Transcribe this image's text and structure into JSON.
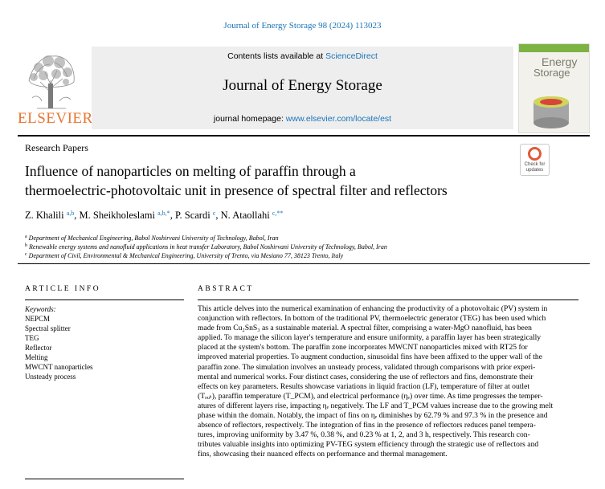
{
  "citation": "Journal of Energy Storage 98 (2024) 113023",
  "header": {
    "logo_text": "ELSEVIER",
    "contents_prefix": "Contents lists available at ",
    "contents_link": "ScienceDirect",
    "journal_title": "Journal of Energy Storage",
    "homepage_prefix": "journal homepage: ",
    "homepage_link": "www.elsevier.com/locate/est",
    "cover_line1": "Energy",
    "cover_line2": "Storage"
  },
  "section_label": "Research Papers",
  "check_updates": {
    "line1": "Check for",
    "line2": "updates"
  },
  "title_line1": "Influence of nanoparticles on melting of paraffin through a",
  "title_line2": "thermoelectric-photovoltaic unit in presence of spectral filter and reflectors",
  "authors": [
    {
      "name": "Z. Khalili",
      "sup": "a,b"
    },
    {
      "name": "M. Sheikholeslami",
      "sup": "a,b,*"
    },
    {
      "name": "P. Scardi",
      "sup": "c"
    },
    {
      "name": "N. Ataollahi",
      "sup": "c,**"
    }
  ],
  "affiliations": [
    {
      "label": "a",
      "text": "Department of Mechanical Engineering, Babol Noshirvani University of Technology, Babol, Iran"
    },
    {
      "label": "b",
      "text": "Renewable energy systems and nanofluid applications in heat transfer Laboratory, Babol Noshirvani University of Technology, Babol, Iran"
    },
    {
      "label": "c",
      "text": "Department of Civil, Environmental & Mechanical Engineering, University of Trento, via Mesiano 77, 38123 Trento, Italy"
    }
  ],
  "article_info_heading": "ARTICLE INFO",
  "abstract_heading": "ABSTRACT",
  "keywords_label": "Keywords:",
  "keywords": [
    "NEPCM",
    "Spectral splitter",
    "TEG",
    "Reflector",
    "Melting",
    "MWCNT nanoparticles",
    "Unsteady process"
  ],
  "abstract_lines": [
    "This article delves into the numerical examination of enhancing the productivity of a photovoltaic (PV) system in",
    "conjunction with reflectors. In bottom of the traditional PV, thermoelectric generator (TEG) has been used which",
    "made from Cu₂SnS₃ as a sustainable material. A spectral filter, comprising a water-MgO nanofluid, has been",
    "applied. To manage the silicon layer's temperature and ensure uniformity, a paraffin layer has been strategically",
    "placed at the system's bottom. The paraffin zone incorporates MWCNT nanoparticles mixed with RT25 for",
    "improved material properties. To augment conduction, sinusoidal fins have been affixed to the upper wall of the",
    "paraffin zone. The simulation involves an unsteady process, validated through comparisons with prior experi-",
    "mental and numerical works. Four distinct cases, considering the use of reflectors and fins, demonstrate their",
    "effects on key parameters. Results showcase variations in liquid fraction (LF), temperature of filter at outlet",
    "(Tₒᵤₜ), paraffin temperature (T_PCM), and electrical performance (ηₑ) over time. As time progresses the temper-",
    "atures of different layers rise, impacting ηₑ negatively. The LF and T_PCM values increase due to the growing melt",
    "phase within the domain. Notably, the impact of fins on ηₑ diminishes by 62.79 % and 97.3 % in the presence and",
    "absence of reflectors, respectively. The integration of fins in the presence of reflectors reduces panel tempera-",
    "tures, improving uniformity by 3.47 %, 0.38 %, and 0.23 % at 1, 2, and 3 h, respectively. This research con-",
    "tributes valuable insights into optimizing PV-TEG system efficiency through the strategic use of reflectors and",
    "fins, showcasing their nuanced effects on performance and thermal management."
  ]
}
